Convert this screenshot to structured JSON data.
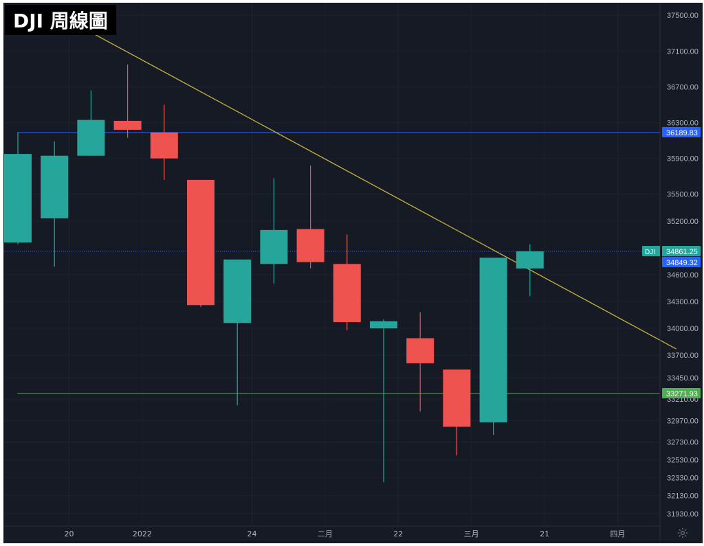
{
  "title": "DJI 周線圖",
  "colors": {
    "background": "#161a25",
    "up": "#26a69a",
    "down": "#ef5350",
    "axis_text": "#b2b5be",
    "grid": "#1e2230",
    "resistance_line": "#2962ff",
    "support_line": "#4caf50",
    "trend_line": "#c5b53e",
    "price_line": "#2962ff"
  },
  "settings_icon": "gear-icon",
  "chart_data": {
    "type": "candlestick",
    "symbol": "DJI",
    "x_tick_labels": [
      "20",
      "2022",
      "24",
      "二月",
      "22",
      "三月",
      "21",
      "四月"
    ],
    "y_ticks": [
      37500,
      37100,
      36700,
      36300,
      35900,
      35500,
      35200,
      34600,
      34300,
      34000,
      33700,
      33450,
      33210,
      32970,
      32730,
      32530,
      32330,
      32130,
      31930
    ],
    "y_tick_labels": [
      "37500.00",
      "37100.00",
      "36700.00",
      "36300.00",
      "35900.00",
      "35500.00",
      "35200.00",
      "34600.00",
      "34300.00",
      "34000.00",
      "33700.00",
      "33450.00",
      "33210.00",
      "32970.00",
      "32730.00",
      "32530.00",
      "32330.00",
      "32130.00",
      "31930.00"
    ],
    "ylim": [
      31790,
      37640
    ],
    "candles": [
      {
        "open": 34960,
        "high": 36190,
        "low": 34940,
        "close": 35950
      },
      {
        "open": 35230,
        "high": 36090,
        "low": 34690,
        "close": 35930
      },
      {
        "open": 35930,
        "high": 36660,
        "low": 35930,
        "close": 36330
      },
      {
        "open": 36320,
        "high": 36950,
        "low": 36130,
        "close": 36220
      },
      {
        "open": 36190,
        "high": 36500,
        "low": 35660,
        "close": 35900
      },
      {
        "open": 35660,
        "high": 35660,
        "low": 34240,
        "close": 34260
      },
      {
        "open": 34060,
        "high": 34770,
        "low": 33140,
        "close": 34770
      },
      {
        "open": 34720,
        "high": 35680,
        "low": 34500,
        "close": 35100
      },
      {
        "open": 35110,
        "high": 35820,
        "low": 34670,
        "close": 34740
      },
      {
        "open": 34720,
        "high": 35050,
        "low": 33980,
        "close": 34070
      },
      {
        "open": 34000,
        "high": 34100,
        "low": 32280,
        "close": 34080
      },
      {
        "open": 33890,
        "high": 34180,
        "low": 33070,
        "close": 33610
      },
      {
        "open": 33540,
        "high": 33540,
        "low": 32580,
        "close": 32900
      },
      {
        "open": 32950,
        "high": 34790,
        "low": 32810,
        "close": 34790
      },
      {
        "open": 34670,
        "high": 34940,
        "low": 34360,
        "close": 34861.25
      }
    ],
    "horizontal_lines": [
      {
        "value": 36189.83,
        "label": "36189.83",
        "color": "#2962ff"
      },
      {
        "value": 33271.93,
        "label": "33271.93",
        "color": "#4caf50"
      }
    ],
    "price_line": {
      "value": 34861.25,
      "label": "34861.25",
      "symbol_tag": "DJI"
    },
    "price_tag_secondary": {
      "label": "34849.32"
    },
    "trend_line": {
      "from_candle": 1,
      "from_value": 37530,
      "to_candle": 18,
      "to_value": 33770
    }
  }
}
